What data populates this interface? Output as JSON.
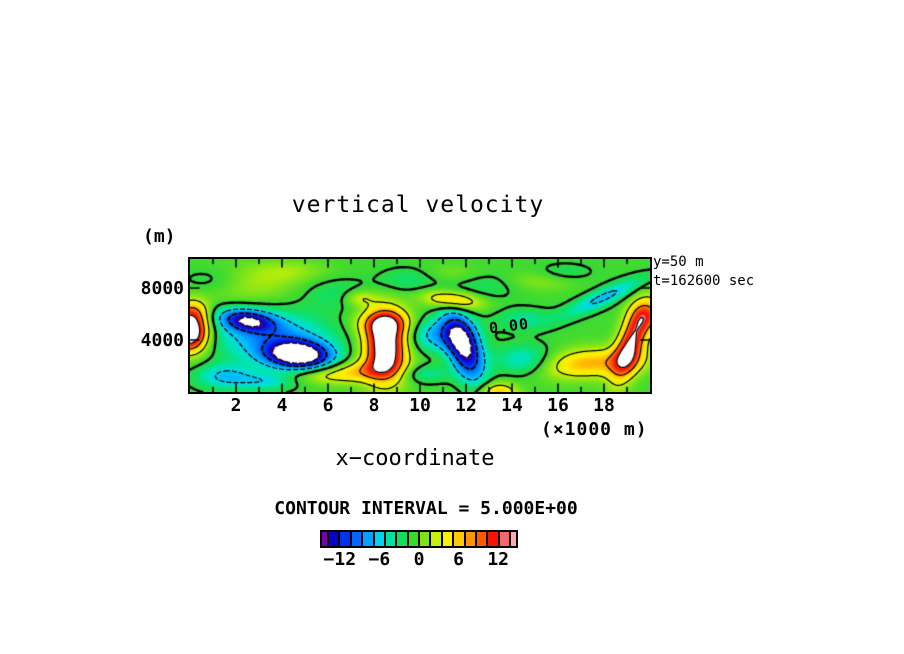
{
  "title": "vertical velocity",
  "plot": {
    "y_unit_label": "(m)",
    "y_tick_labels": [
      "8000",
      "4000"
    ],
    "x_tick_labels": [
      "2",
      "4",
      "6",
      "8",
      "10",
      "12",
      "14",
      "16",
      "18"
    ],
    "x_unit_label": "(×1000 m)",
    "x_axis_title": "x−coordinate",
    "annotation_line1": "y=50 m",
    "annotation_line2": "t=162600 sec",
    "zero_contour_label": "0.00"
  },
  "legend": {
    "text": "CONTOUR INTERVAL = 5.000E+00",
    "tick_labels": [
      "−12",
      "−6",
      "0",
      "6",
      "12"
    ],
    "tick_positions_pct": [
      10,
      30,
      50,
      70,
      90
    ],
    "box_colors": [
      "#7800AA",
      "#0A00C8",
      "#0032F0",
      "#0066FF",
      "#00A2FF",
      "#00D2EE",
      "#00E2A4",
      "#12DF5A",
      "#38DA2A",
      "#7CE416",
      "#C8F104",
      "#FFF000",
      "#FFC800",
      "#FF9400",
      "#FF5A00",
      "#FA1400",
      "#FB6468",
      "#FFA6AE"
    ]
  },
  "chart_data": {
    "type": "heatmap",
    "title": "vertical velocity",
    "xlabel": "x−coordinate (×1000 m)",
    "ylabel": "(m)",
    "slice": "y=50 m",
    "time": "t=162600 sec",
    "x_range_km": [
      0,
      20
    ],
    "y_range_km": [
      0,
      10.23
    ],
    "contour_interval": 5.0,
    "contour_levels": [
      -15,
      -10,
      -5,
      0,
      5,
      10,
      15
    ],
    "color_range": [
      -15,
      15
    ],
    "out_of_range_color": "#FFFFFF",
    "base_value": 0.8,
    "colormap_stops": [
      [
        -15,
        "#7800AA"
      ],
      [
        -14,
        "#1000C0"
      ],
      [
        -12,
        "#0028E8"
      ],
      [
        -10,
        "#0055FF"
      ],
      [
        -8,
        "#0088FF"
      ],
      [
        -6,
        "#00BBFF"
      ],
      [
        -4.5,
        "#00DCE1"
      ],
      [
        -3,
        "#00E5A5"
      ],
      [
        -1.5,
        "#12DE62"
      ],
      [
        0,
        "#30D83A"
      ],
      [
        1,
        "#46DB2D"
      ],
      [
        2.5,
        "#76E31D"
      ],
      [
        4,
        "#ACEC0E"
      ],
      [
        5.5,
        "#E2F400"
      ],
      [
        7,
        "#FFEE00"
      ],
      [
        8.5,
        "#FFC900"
      ],
      [
        10,
        "#FF9700"
      ],
      [
        11.5,
        "#FF5D00"
      ],
      [
        13,
        "#FF2500"
      ],
      [
        14.2,
        "#F20C06"
      ],
      [
        14.7,
        "#FC5A5A"
      ],
      [
        15,
        "#FFA2AA"
      ]
    ],
    "gaussian_features": [
      {
        "x": 0.0,
        "y": 4.6,
        "amp": 21,
        "sx": 0.55,
        "sy": 1.05,
        "rot": 0
      },
      {
        "x": 0.15,
        "y": 6.2,
        "amp": 6,
        "sx": 0.5,
        "sy": 0.7,
        "rot": 0
      },
      {
        "x": 2.5,
        "y": 5.5,
        "amp": -13,
        "sx": 0.85,
        "sy": 0.55,
        "rot": -20
      },
      {
        "x": 4.7,
        "y": 2.85,
        "amp": -20,
        "sx": 0.95,
        "sy": 0.7,
        "rot": -12
      },
      {
        "x": 3.6,
        "y": 4.2,
        "amp": -8,
        "sx": 1.9,
        "sy": 1.4,
        "rot": -15
      },
      {
        "x": 1.5,
        "y": 1.2,
        "amp": -6,
        "sx": 0.9,
        "sy": 0.7,
        "rot": 0
      },
      {
        "x": 3.3,
        "y": 0.8,
        "amp": -4.5,
        "sx": 0.9,
        "sy": 0.5,
        "rot": 0
      },
      {
        "x": 8.5,
        "y": 3.5,
        "amp": 19,
        "sx": 0.65,
        "sy": 1.85,
        "rot": 0
      },
      {
        "x": 8.45,
        "y": 5.3,
        "amp": 8,
        "sx": 0.8,
        "sy": 0.7,
        "rot": 0
      },
      {
        "x": 7.4,
        "y": 1.6,
        "amp": 6.5,
        "sx": 1.1,
        "sy": 0.6,
        "rot": 10
      },
      {
        "x": 11.4,
        "y": 7.1,
        "amp": 9,
        "sx": 0.9,
        "sy": 0.5,
        "rot": -15
      },
      {
        "x": 11.9,
        "y": 3.5,
        "amp": -17,
        "sx": 0.5,
        "sy": 1.8,
        "rot": 10
      },
      {
        "x": 10.8,
        "y": 4.4,
        "amp": -7,
        "sx": 1.0,
        "sy": 0.9,
        "rot": 0
      },
      {
        "x": 14.6,
        "y": 2.4,
        "amp": -6,
        "sx": 0.95,
        "sy": 0.85,
        "rot": 0
      },
      {
        "x": 17.3,
        "y": 2.2,
        "amp": 8.5,
        "sx": 1.7,
        "sy": 0.8,
        "rot": 8
      },
      {
        "x": 19.15,
        "y": 3.6,
        "amp": 14.5,
        "sx": 0.42,
        "sy": 1.9,
        "rot": -10
      },
      {
        "x": 19.9,
        "y": 5.9,
        "amp": 8,
        "sx": 0.55,
        "sy": 0.9,
        "rot": 0
      },
      {
        "x": 18.0,
        "y": 7.3,
        "amp": -6.5,
        "sx": 1.6,
        "sy": 0.42,
        "rot": 40
      },
      {
        "x": 2.6,
        "y": 8.2,
        "amp": 3,
        "sx": 1.7,
        "sy": 1.1,
        "rot": 0
      },
      {
        "x": 6.2,
        "y": 7.6,
        "amp": -2.5,
        "sx": 1.1,
        "sy": 0.9,
        "rot": 0
      },
      {
        "x": 7.4,
        "y": 7.2,
        "amp": 4.5,
        "sx": 0.5,
        "sy": 0.45,
        "rot": 0
      },
      {
        "x": 9.6,
        "y": 8.6,
        "amp": -3,
        "sx": 1.0,
        "sy": 0.7,
        "rot": 0
      },
      {
        "x": 12.6,
        "y": 8.2,
        "amp": -2.5,
        "sx": 1.2,
        "sy": 0.8,
        "rot": 0
      },
      {
        "x": 14.5,
        "y": 5.6,
        "amp": -3.5,
        "sx": 0.9,
        "sy": 0.6,
        "rot": 0
      },
      {
        "x": 15.2,
        "y": 8.6,
        "amp": 2.5,
        "sx": 1.1,
        "sy": 0.6,
        "rot": 0
      },
      {
        "x": 5.6,
        "y": 1.3,
        "amp": 3.5,
        "sx": 1.0,
        "sy": 0.5,
        "rot": 0
      },
      {
        "x": 13.4,
        "y": 0.0,
        "amp": 8,
        "sx": 0.55,
        "sy": 0.5,
        "rot": 0
      },
      {
        "x": 10.2,
        "y": 1.4,
        "amp": -3.5,
        "sx": 0.8,
        "sy": 0.5,
        "rot": 0
      },
      {
        "x": 16.2,
        "y": 9.2,
        "amp": -2.5,
        "sx": 0.9,
        "sy": 0.5,
        "rot": 0
      },
      {
        "x": 0.9,
        "y": 8.6,
        "amp": -2.5,
        "sx": 1.0,
        "sy": 0.7,
        "rot": 0
      },
      {
        "x": 4.4,
        "y": 9.3,
        "amp": 2.2,
        "sx": 1.2,
        "sy": 0.6,
        "rot": 0
      },
      {
        "x": 11.3,
        "y": 9.0,
        "amp": 2.5,
        "sx": 1.0,
        "sy": 0.6,
        "rot": 0
      }
    ]
  }
}
